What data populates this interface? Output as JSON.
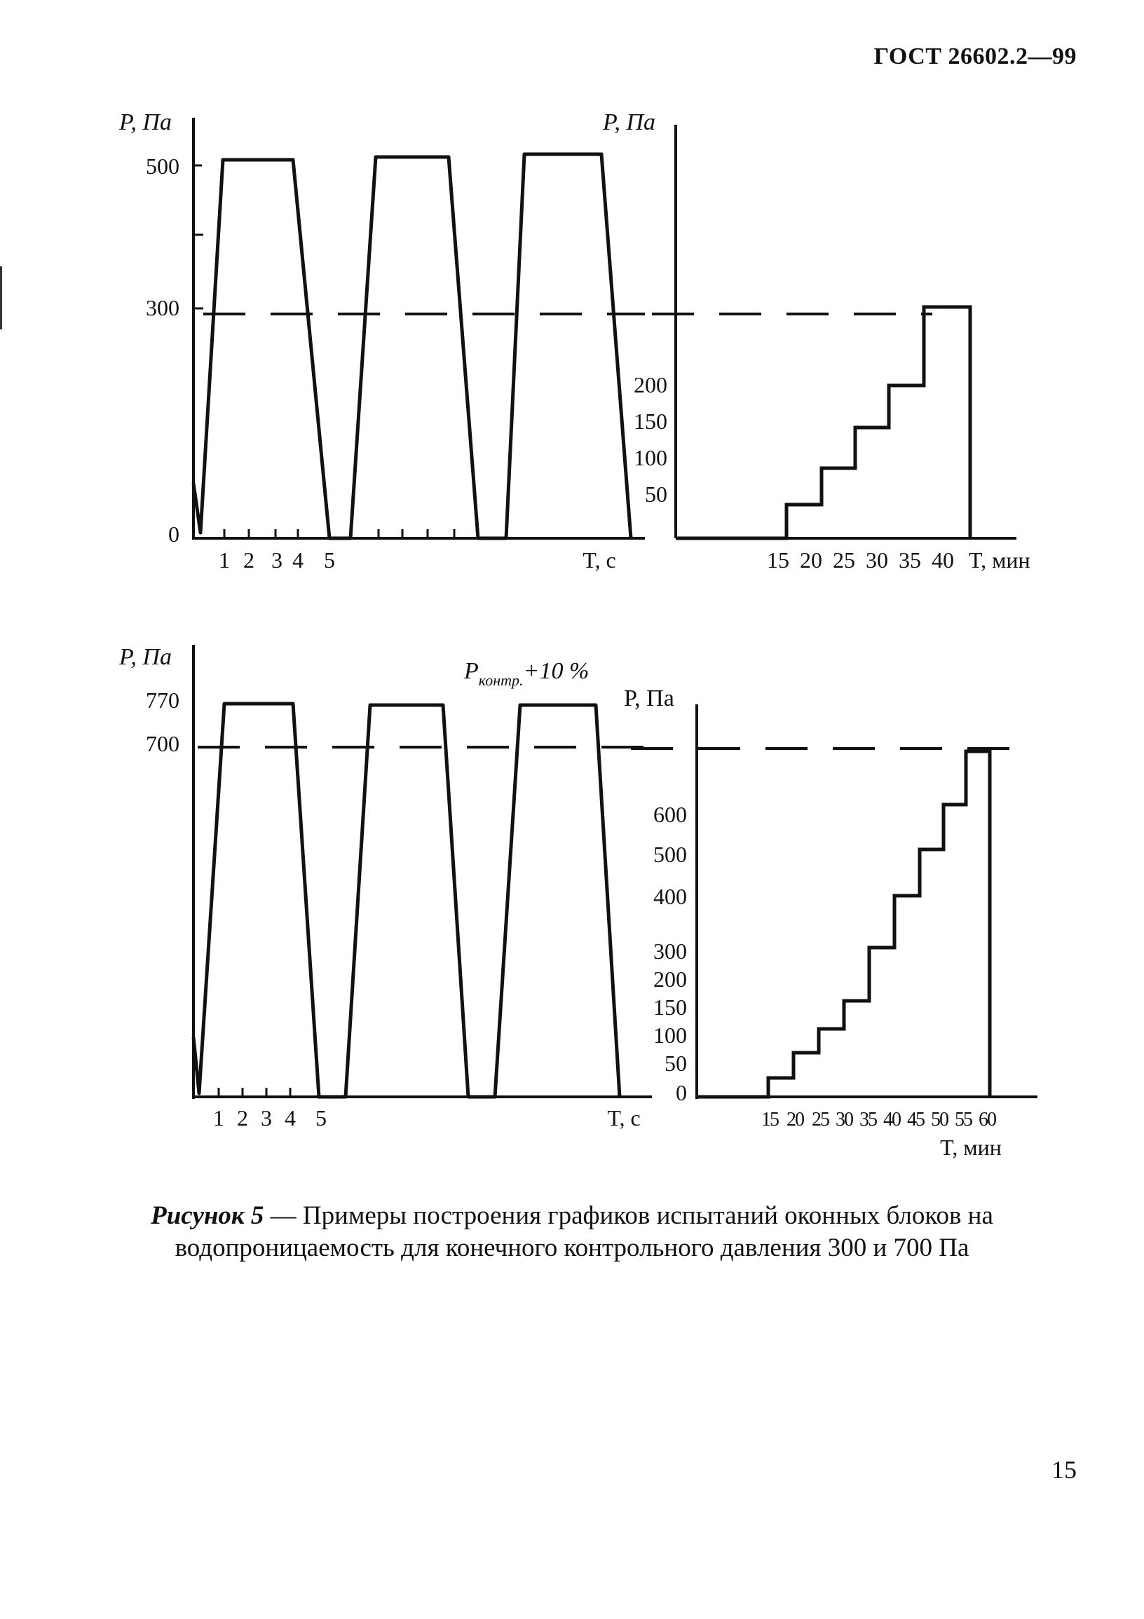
{
  "header": {
    "doc_id": "ГОСТ 26602.2—99"
  },
  "charts": {
    "top_left": {
      "y_label": "P, Па",
      "x_label": "T, с",
      "y_ticks": [
        "500",
        "300",
        "0"
      ],
      "x_ticks": [
        "1",
        "2",
        "3",
        "4",
        "5"
      ]
    },
    "top_right": {
      "y_label": "P, Па",
      "x_label": "T, мин",
      "y_ticks": [
        "200",
        "150",
        "100",
        "50"
      ],
      "x_ticks": [
        "15",
        "20",
        "25",
        "30",
        "35",
        "40"
      ]
    },
    "bottom_left": {
      "y_label": "P, Па",
      "x_label": "T, с",
      "y_ticks": [
        "770",
        "700"
      ],
      "x_ticks": [
        "1",
        "2",
        "3",
        "4",
        "5"
      ],
      "annotation_main": "P",
      "annotation_sub": "контр.",
      "annotation_tail": "+10 %"
    },
    "bottom_right": {
      "y_label": "P, Па",
      "x_label": "T, мин",
      "y_ticks": [
        "600",
        "500",
        "400",
        "300",
        "200",
        "150",
        "100",
        "50",
        "0"
      ],
      "x_ticks": [
        "15",
        "20",
        "25",
        "30",
        "35",
        "40",
        "45",
        "50",
        "55",
        "60"
      ]
    }
  },
  "chart_data": [
    {
      "type": "line",
      "x": [
        0,
        0.5,
        2.5,
        4.5,
        5,
        5.5,
        7.5,
        9.5,
        10,
        10.5,
        12.5,
        14.5
      ],
      "series": [
        {
          "values": [
            0,
            500,
            500,
            0,
            0,
            500,
            500,
            0,
            0,
            500,
            500,
            0
          ]
        }
      ],
      "reference_line": 300,
      "ylim": [
        0,
        550
      ]
    },
    {
      "type": "line",
      "x": [
        15,
        20,
        25,
        30,
        35,
        40
      ],
      "series": [
        {
          "values": [
            50,
            100,
            150,
            200,
            300,
            300
          ]
        }
      ],
      "reference_line": 300,
      "ylim": [
        0,
        350
      ]
    },
    {
      "type": "line",
      "x": [
        0,
        0.5,
        2.5,
        4.5,
        5,
        5.5,
        7.5,
        9.5,
        10,
        10.5,
        12.5,
        14.5
      ],
      "series": [
        {
          "values": [
            0,
            770,
            770,
            0,
            0,
            770,
            770,
            0,
            0,
            770,
            770,
            0
          ]
        }
      ],
      "reference_line": 700,
      "ylim": [
        0,
        800
      ]
    },
    {
      "type": "line",
      "x": [
        15,
        20,
        25,
        30,
        35,
        40,
        45,
        50,
        55,
        60
      ],
      "series": [
        {
          "values": [
            50,
            100,
            150,
            200,
            300,
            400,
            500,
            600,
            700,
            700
          ]
        }
      ],
      "reference_line": 700,
      "ylim": [
        0,
        800
      ]
    }
  ],
  "caption": {
    "lead": "Рисунок 5",
    "text": " — Примеры построения графиков испытаний оконных блоков на водопроницаемость для конечного контрольного давления 300 и 700 Па"
  },
  "page_number": "15"
}
